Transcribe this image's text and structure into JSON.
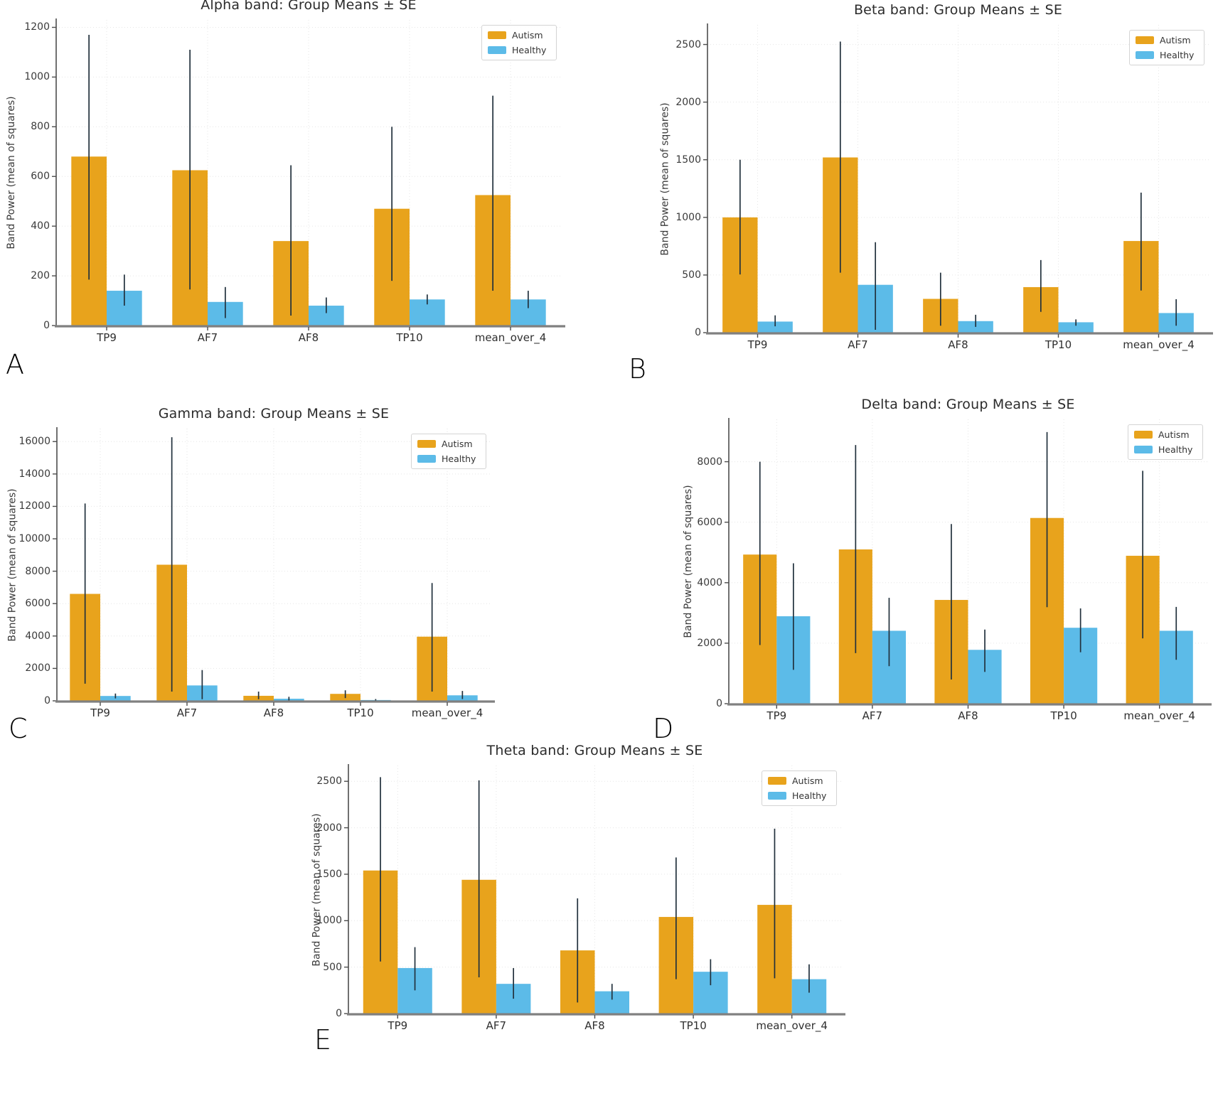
{
  "figure": {
    "background": "#ffffff",
    "panel_letters": [
      "A",
      "B",
      "C",
      "D",
      "E"
    ]
  },
  "palette": {
    "autism": "#E8A31C",
    "healthy": "#5CBBE8",
    "error_bar": "#22313d",
    "grid": "#e6e6e6",
    "spine_left": "#4d4d4d",
    "spine_bottom": "#808080"
  },
  "chart_data": [
    {
      "panel": "A",
      "type": "bar",
      "title": "Alpha band: Group Means ± SE",
      "ylabel": "Band Power (mean of squares)",
      "xlabel": "",
      "categories": [
        "TP9",
        "AF7",
        "AF8",
        "TP10",
        "mean_over_4"
      ],
      "ylim": [
        0,
        1230
      ],
      "yticks": [
        0,
        200,
        400,
        600,
        800,
        1000,
        1200
      ],
      "grid": true,
      "legend_position": "upper right",
      "series": [
        {
          "name": "Autism",
          "color": "#E8A31C",
          "values": [
            680,
            625,
            340,
            470,
            525
          ],
          "err_lo": [
            185,
            145,
            40,
            180,
            140
          ],
          "err_hi": [
            1170,
            1110,
            645,
            800,
            925
          ]
        },
        {
          "name": "Healthy",
          "color": "#5CBBE8",
          "values": [
            140,
            95,
            80,
            105,
            105
          ],
          "err_lo": [
            80,
            30,
            50,
            85,
            70
          ],
          "err_hi": [
            205,
            155,
            113,
            125,
            140
          ]
        }
      ]
    },
    {
      "panel": "B",
      "type": "bar",
      "title": "Beta band: Group Means ± SE",
      "ylabel": "Band Power (mean of squares)",
      "xlabel": "",
      "categories": [
        "TP9",
        "AF7",
        "AF8",
        "TP10",
        "mean_over_4"
      ],
      "ylim": [
        0,
        2670
      ],
      "yticks": [
        0,
        500,
        1000,
        1500,
        2000,
        2500
      ],
      "grid": true,
      "legend_position": "upper right",
      "series": [
        {
          "name": "Autism",
          "color": "#E8A31C",
          "values": [
            1000,
            1520,
            293,
            395,
            795
          ],
          "err_lo": [
            505,
            520,
            60,
            180,
            365
          ],
          "err_hi": [
            1500,
            2525,
            520,
            630,
            1215
          ]
        },
        {
          "name": "Healthy",
          "color": "#5CBBE8",
          "values": [
            96,
            415,
            100,
            90,
            170
          ],
          "err_lo": [
            55,
            25,
            50,
            60,
            60
          ],
          "err_hi": [
            150,
            785,
            155,
            115,
            290
          ]
        }
      ]
    },
    {
      "panel": "C",
      "type": "bar",
      "title": "Gamma band: Group Means ± SE",
      "ylabel": "Band Power (mean of squares)",
      "xlabel": "",
      "categories": [
        "TP9",
        "AF7",
        "AF8",
        "TP10",
        "mean_over_4"
      ],
      "ylim": [
        0,
        16800
      ],
      "yticks": [
        0,
        2000,
        4000,
        6000,
        8000,
        10000,
        12000,
        14000,
        16000
      ],
      "grid": true,
      "legend_position": "upper right",
      "series": [
        {
          "name": "Autism",
          "color": "#E8A31C",
          "values": [
            6600,
            8400,
            310,
            430,
            3960
          ],
          "err_lo": [
            1060,
            570,
            100,
            170,
            570
          ],
          "err_hi": [
            12180,
            16270,
            570,
            650,
            7270
          ]
        },
        {
          "name": "Healthy",
          "color": "#5CBBE8",
          "values": [
            300,
            950,
            130,
            50,
            340
          ],
          "err_lo": [
            150,
            100,
            10,
            5,
            110
          ],
          "err_hi": [
            450,
            1900,
            250,
            110,
            610
          ]
        }
      ]
    },
    {
      "panel": "D",
      "type": "bar",
      "title": "Delta band: Group Means ± SE",
      "ylabel": "Band Power (mean of squares)",
      "xlabel": "",
      "categories": [
        "TP9",
        "AF7",
        "AF8",
        "TP10",
        "mean_over_4"
      ],
      "ylim": [
        0,
        9400
      ],
      "yticks": [
        0,
        2000,
        4000,
        6000,
        8000
      ],
      "grid": true,
      "legend_position": "upper right",
      "series": [
        {
          "name": "Autism",
          "color": "#E8A31C",
          "values": [
            4930,
            5100,
            3430,
            6140,
            4890
          ],
          "err_lo": [
            1940,
            1670,
            800,
            3190,
            2160
          ],
          "err_hi": [
            8000,
            8550,
            5940,
            8980,
            7700
          ]
        },
        {
          "name": "Healthy",
          "color": "#5CBBE8",
          "values": [
            2890,
            2410,
            1780,
            2510,
            2410
          ],
          "err_lo": [
            1120,
            1240,
            1050,
            1700,
            1450
          ],
          "err_hi": [
            4640,
            3500,
            2450,
            3150,
            3200
          ]
        }
      ]
    },
    {
      "panel": "E",
      "type": "bar",
      "title": "Theta band: Group Means ± SE",
      "ylabel": "Band Power (mean of squares)",
      "xlabel": "",
      "categories": [
        "TP9",
        "AF7",
        "AF8",
        "TP10",
        "mean_over_4"
      ],
      "ylim": [
        0,
        2670
      ],
      "yticks": [
        0,
        500,
        1000,
        1500,
        2000,
        2500
      ],
      "grid": true,
      "legend_position": "upper right",
      "series": [
        {
          "name": "Autism",
          "color": "#E8A31C",
          "values": [
            1540,
            1440,
            680,
            1040,
            1170
          ],
          "err_lo": [
            560,
            390,
            120,
            370,
            380
          ],
          "err_hi": [
            2545,
            2510,
            1240,
            1680,
            1990
          ]
        },
        {
          "name": "Healthy",
          "color": "#5CBBE8",
          "values": [
            490,
            320,
            240,
            450,
            370
          ],
          "err_lo": [
            250,
            160,
            150,
            305,
            225
          ],
          "err_hi": [
            715,
            490,
            320,
            585,
            530
          ]
        }
      ]
    }
  ]
}
